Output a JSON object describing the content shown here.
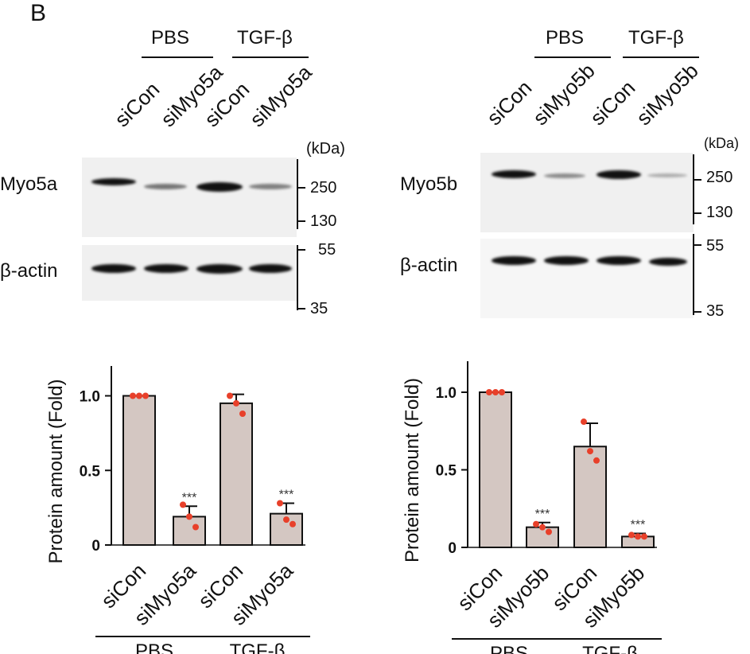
{
  "panel_label": "B",
  "blot_left": {
    "groups": [
      "PBS",
      "TGF-β"
    ],
    "lanes": [
      "siCon",
      "siMyo5a",
      "siCon",
      "siMyo5a"
    ],
    "kda_label": "(kDa)",
    "row1_label": "Myo5a",
    "row2_label": "β-actin",
    "markers_top": [
      "250",
      "130"
    ],
    "markers_bottom": [
      "55",
      "35"
    ]
  },
  "blot_right": {
    "groups": [
      "PBS",
      "TGF-β"
    ],
    "lanes": [
      "siCon",
      "siMyo5b",
      "siCon",
      "siMyo5b"
    ],
    "kda_label": "(kDa)",
    "row1_label": "Myo5b",
    "row2_label": "β-actin",
    "markers_top": [
      "250",
      "130"
    ],
    "markers_bottom": [
      "55",
      "35"
    ]
  },
  "chart_data": [
    {
      "type": "bar",
      "ylabel": "Protein amount (Fold)",
      "ylim": [
        0,
        1.2
      ],
      "yticks": [
        "0",
        "0.5",
        "1.0"
      ],
      "categories": [
        "siCon",
        "siMyo5a",
        "siCon",
        "siMyo5a"
      ],
      "groups": [
        "PBS",
        "TGF-β"
      ],
      "values": [
        1.0,
        0.19,
        0.95,
        0.21
      ],
      "errors": [
        0,
        0.07,
        0.06,
        0.07
      ],
      "points": [
        [
          1.0,
          1.0,
          1.0
        ],
        [
          0.27,
          0.19,
          0.12
        ],
        [
          1.0,
          0.95,
          0.88
        ],
        [
          0.28,
          0.17,
          0.14
        ]
      ],
      "annotations": [
        "",
        "***",
        "",
        "***"
      ],
      "bar_color": "#d4c7c2",
      "point_color": "#e8402a"
    },
    {
      "type": "bar",
      "ylabel": "Protein amount (Fold)",
      "ylim": [
        0,
        1.2
      ],
      "yticks": [
        "0",
        "0.5",
        "1.0"
      ],
      "categories": [
        "siCon",
        "siMyo5b",
        "siCon",
        "siMyo5b"
      ],
      "groups": [
        "PBS",
        "TGF-β"
      ],
      "values": [
        1.0,
        0.13,
        0.65,
        0.07
      ],
      "errors": [
        0,
        0.03,
        0.15,
        0.02
      ],
      "points": [
        [
          1.0,
          1.0,
          1.0
        ],
        [
          0.15,
          0.13,
          0.1
        ],
        [
          0.81,
          0.62,
          0.56
        ],
        [
          0.08,
          0.07,
          0.07
        ]
      ],
      "annotations": [
        "",
        "***",
        "",
        "***"
      ],
      "bar_color": "#d4c7c2",
      "point_color": "#e8402a"
    }
  ]
}
